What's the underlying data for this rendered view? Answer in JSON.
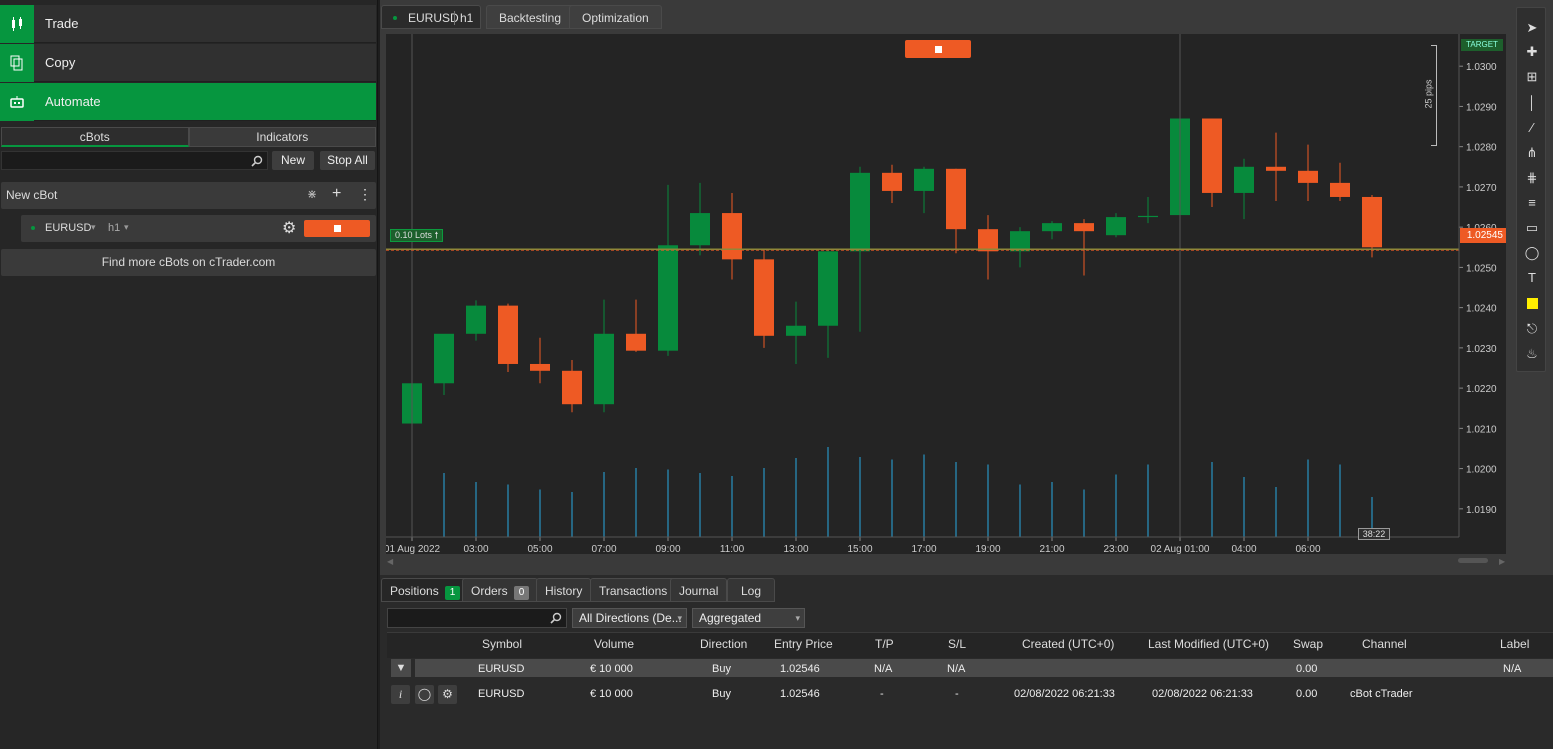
{
  "nav": [
    {
      "label": "Trade",
      "icon": "candles-icon"
    },
    {
      "label": "Copy",
      "icon": "copy-icon"
    },
    {
      "label": "Automate",
      "icon": "robot-icon"
    }
  ],
  "cbots": {
    "tabs": [
      "cBots",
      "Indicators"
    ],
    "search_placeholder": "",
    "new_label": "New",
    "stop_all_label": "Stop All",
    "group_label": "New cBot",
    "instance": {
      "symbol": "EURUSD",
      "timeframe": "h1"
    },
    "find_more": "Find more cBots on cTrader.com"
  },
  "chart_tabs": {
    "symbol": "EURUSD",
    "timeframe": "h1",
    "backtesting": "Backtesting",
    "optimization": "Optimization"
  },
  "chart_overlay": {
    "lots_label": "0.10 Lots",
    "price_marker": "1.02545",
    "target_label": "TARGET",
    "pips_label": "25 pips",
    "countdown": "38:22"
  },
  "chart_data": {
    "type": "candlestick",
    "symbol": "EURUSD",
    "timeframe": "h1",
    "ylim": [
      1.0183,
      1.0308
    ],
    "y_ticks": [
      "1.0300",
      "1.0290",
      "1.0280",
      "1.0270",
      "1.0260",
      "1.0250",
      "1.0240",
      "1.0230",
      "1.0220",
      "1.0210",
      "1.0200",
      "1.0190"
    ],
    "x_tick_labels": [
      "01 Aug 2022",
      "03:00",
      "05:00",
      "07:00",
      "09:00",
      "11:00",
      "13:00",
      "15:00",
      "17:00",
      "19:00",
      "21:00",
      "23:00",
      "02 Aug 01:00",
      "04:00",
      "06:00"
    ],
    "x_tick_index": [
      0,
      2,
      4,
      6,
      8,
      10,
      12,
      14,
      16,
      18,
      20,
      22,
      24,
      26,
      28
    ],
    "candles": [
      {
        "o": 1.02112,
        "h": 1.02223,
        "l": 1.02085,
        "c": 1.02212
      },
      {
        "o": 1.02212,
        "h": 1.02323,
        "l": 1.02183,
        "c": 1.02335
      },
      {
        "o": 1.02335,
        "h": 1.02418,
        "l": 1.02318,
        "c": 1.02405
      },
      {
        "o": 1.02405,
        "h": 1.0241,
        "l": 1.0224,
        "c": 1.0226
      },
      {
        "o": 1.0226,
        "h": 1.02325,
        "l": 1.02212,
        "c": 1.02243
      },
      {
        "o": 1.02243,
        "h": 1.0227,
        "l": 1.0214,
        "c": 1.0216
      },
      {
        "o": 1.0216,
        "h": 1.0242,
        "l": 1.0214,
        "c": 1.02335
      },
      {
        "o": 1.02335,
        "h": 1.0242,
        "l": 1.0229,
        "c": 1.02293
      },
      {
        "o": 1.02293,
        "h": 1.02705,
        "l": 1.0228,
        "c": 1.02555
      },
      {
        "o": 1.02555,
        "h": 1.0271,
        "l": 1.0253,
        "c": 1.02635
      },
      {
        "o": 1.02635,
        "h": 1.02685,
        "l": 1.0247,
        "c": 1.0252
      },
      {
        "o": 1.0252,
        "h": 1.02545,
        "l": 1.023,
        "c": 1.0233
      },
      {
        "o": 1.0233,
        "h": 1.02415,
        "l": 1.0226,
        "c": 1.02355
      },
      {
        "o": 1.02355,
        "h": 1.02545,
        "l": 1.02275,
        "c": 1.0254
      },
      {
        "o": 1.0254,
        "h": 1.0275,
        "l": 1.0234,
        "c": 1.02735
      },
      {
        "o": 1.02735,
        "h": 1.02755,
        "l": 1.0266,
        "c": 1.0269
      },
      {
        "o": 1.0269,
        "h": 1.0275,
        "l": 1.02635,
        "c": 1.02745
      },
      {
        "o": 1.02745,
        "h": 1.02745,
        "l": 1.02535,
        "c": 1.02595
      },
      {
        "o": 1.02595,
        "h": 1.0263,
        "l": 1.0247,
        "c": 1.0254
      },
      {
        "o": 1.0254,
        "h": 1.026,
        "l": 1.025,
        "c": 1.0259
      },
      {
        "o": 1.0259,
        "h": 1.02615,
        "l": 1.0257,
        "c": 1.0261
      },
      {
        "o": 1.0261,
        "h": 1.0262,
        "l": 1.0248,
        "c": 1.0259
      },
      {
        "o": 1.0258,
        "h": 1.02635,
        "l": 1.02575,
        "c": 1.02625
      },
      {
        "o": 1.02625,
        "h": 1.02675,
        "l": 1.0261,
        "c": 1.02628
      },
      {
        "o": 1.0263,
        "h": 1.02945,
        "l": 1.02625,
        "c": 1.0287
      },
      {
        "o": 1.0287,
        "h": 1.0287,
        "l": 1.0265,
        "c": 1.02685
      },
      {
        "o": 1.02685,
        "h": 1.0277,
        "l": 1.0262,
        "c": 1.0275
      },
      {
        "o": 1.0275,
        "h": 1.02835,
        "l": 1.02665,
        "c": 1.0274
      },
      {
        "o": 1.0274,
        "h": 1.02805,
        "l": 1.02665,
        "c": 1.0271
      },
      {
        "o": 1.0271,
        "h": 1.0276,
        "l": 1.02665,
        "c": 1.02675
      },
      {
        "o": 1.02675,
        "h": 1.0268,
        "l": 1.02525,
        "c": 1.0255
      }
    ],
    "volumes": [
      1250,
      1280,
      1100,
      1050,
      950,
      900,
      1300,
      1380,
      1350,
      1280,
      1220,
      1380,
      1580,
      1800,
      1600,
      1550,
      1650,
      1500,
      1450,
      1050,
      1100,
      950,
      1250,
      1450,
      1650,
      1500,
      1200,
      1000,
      1550,
      1450,
      800
    ],
    "price_line": 1.02545
  },
  "positions": {
    "tabs": [
      {
        "label": "Positions",
        "count": "1"
      },
      {
        "label": "Orders",
        "count": "0"
      },
      {
        "label": "History"
      },
      {
        "label": "Transactions"
      },
      {
        "label": "Journal"
      },
      {
        "label": "Log"
      }
    ],
    "filter_direction": "All Directions (De...",
    "filter_mode": "Aggregated",
    "columns": [
      "Symbol",
      "Volume",
      "Direction",
      "Entry Price",
      "T/P",
      "S/L",
      "Created (UTC+0)",
      "Last Modified (UTC+0)",
      "Swap",
      "Channel",
      "Label"
    ],
    "group": {
      "symbol": "EURUSD",
      "volume": "€ 10 000",
      "direction": "Buy",
      "entry": "1.02546",
      "tp": "N/A",
      "sl": "N/A",
      "swap": "0.00",
      "label": "N/A"
    },
    "row": {
      "symbol": "EURUSD",
      "volume": "€ 10 000",
      "direction": "Buy",
      "entry": "1.02546",
      "tp": "-",
      "sl": "-",
      "created": "02/08/2022 06:21:33",
      "modified": "02/08/2022 06:21:33",
      "swap": "0.00",
      "channel": "cBot cTrader"
    }
  }
}
